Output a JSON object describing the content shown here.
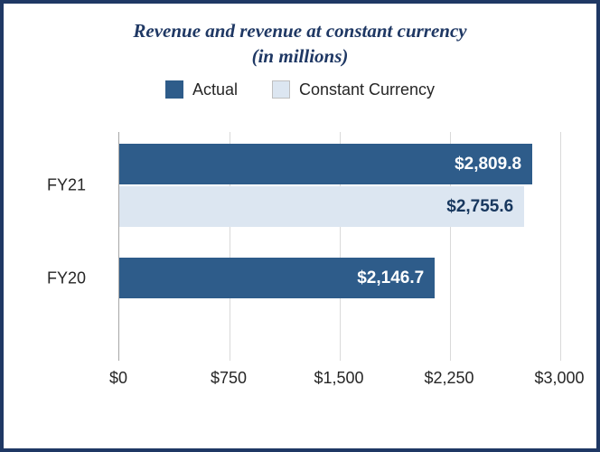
{
  "title": {
    "line1": "Revenue and revenue at constant currency",
    "line2": "(in millions)"
  },
  "legend": [
    {
      "label": "Actual",
      "color": "#2E5C8A"
    },
    {
      "label": "Constant Currency",
      "color": "#DCE6F1",
      "border": "#BFBFBF"
    }
  ],
  "chart_data": {
    "type": "bar",
    "orientation": "horizontal",
    "title": "Revenue and revenue at constant currency (in millions)",
    "categories": [
      "FY21",
      "FY20"
    ],
    "series": [
      {
        "name": "Actual",
        "color": "#2E5C8A",
        "label_color": "#FFFFFF",
        "values": [
          2809.8,
          2146.7
        ],
        "labels": [
          "$2,809.8",
          "$2,146.7"
        ]
      },
      {
        "name": "Constant Currency",
        "color": "#DCE6F1",
        "label_color": "#17375E",
        "values": [
          2755.6,
          null
        ],
        "labels": [
          "$2,755.6",
          null
        ]
      }
    ],
    "xlim": [
      0,
      3000
    ],
    "xticks": [
      0,
      750,
      1500,
      2250,
      3000
    ],
    "xtick_labels": [
      "$0",
      "$750",
      "$1,500",
      "$2,250",
      "$3,000"
    ],
    "grid": "vertical",
    "legend_position": "top"
  }
}
